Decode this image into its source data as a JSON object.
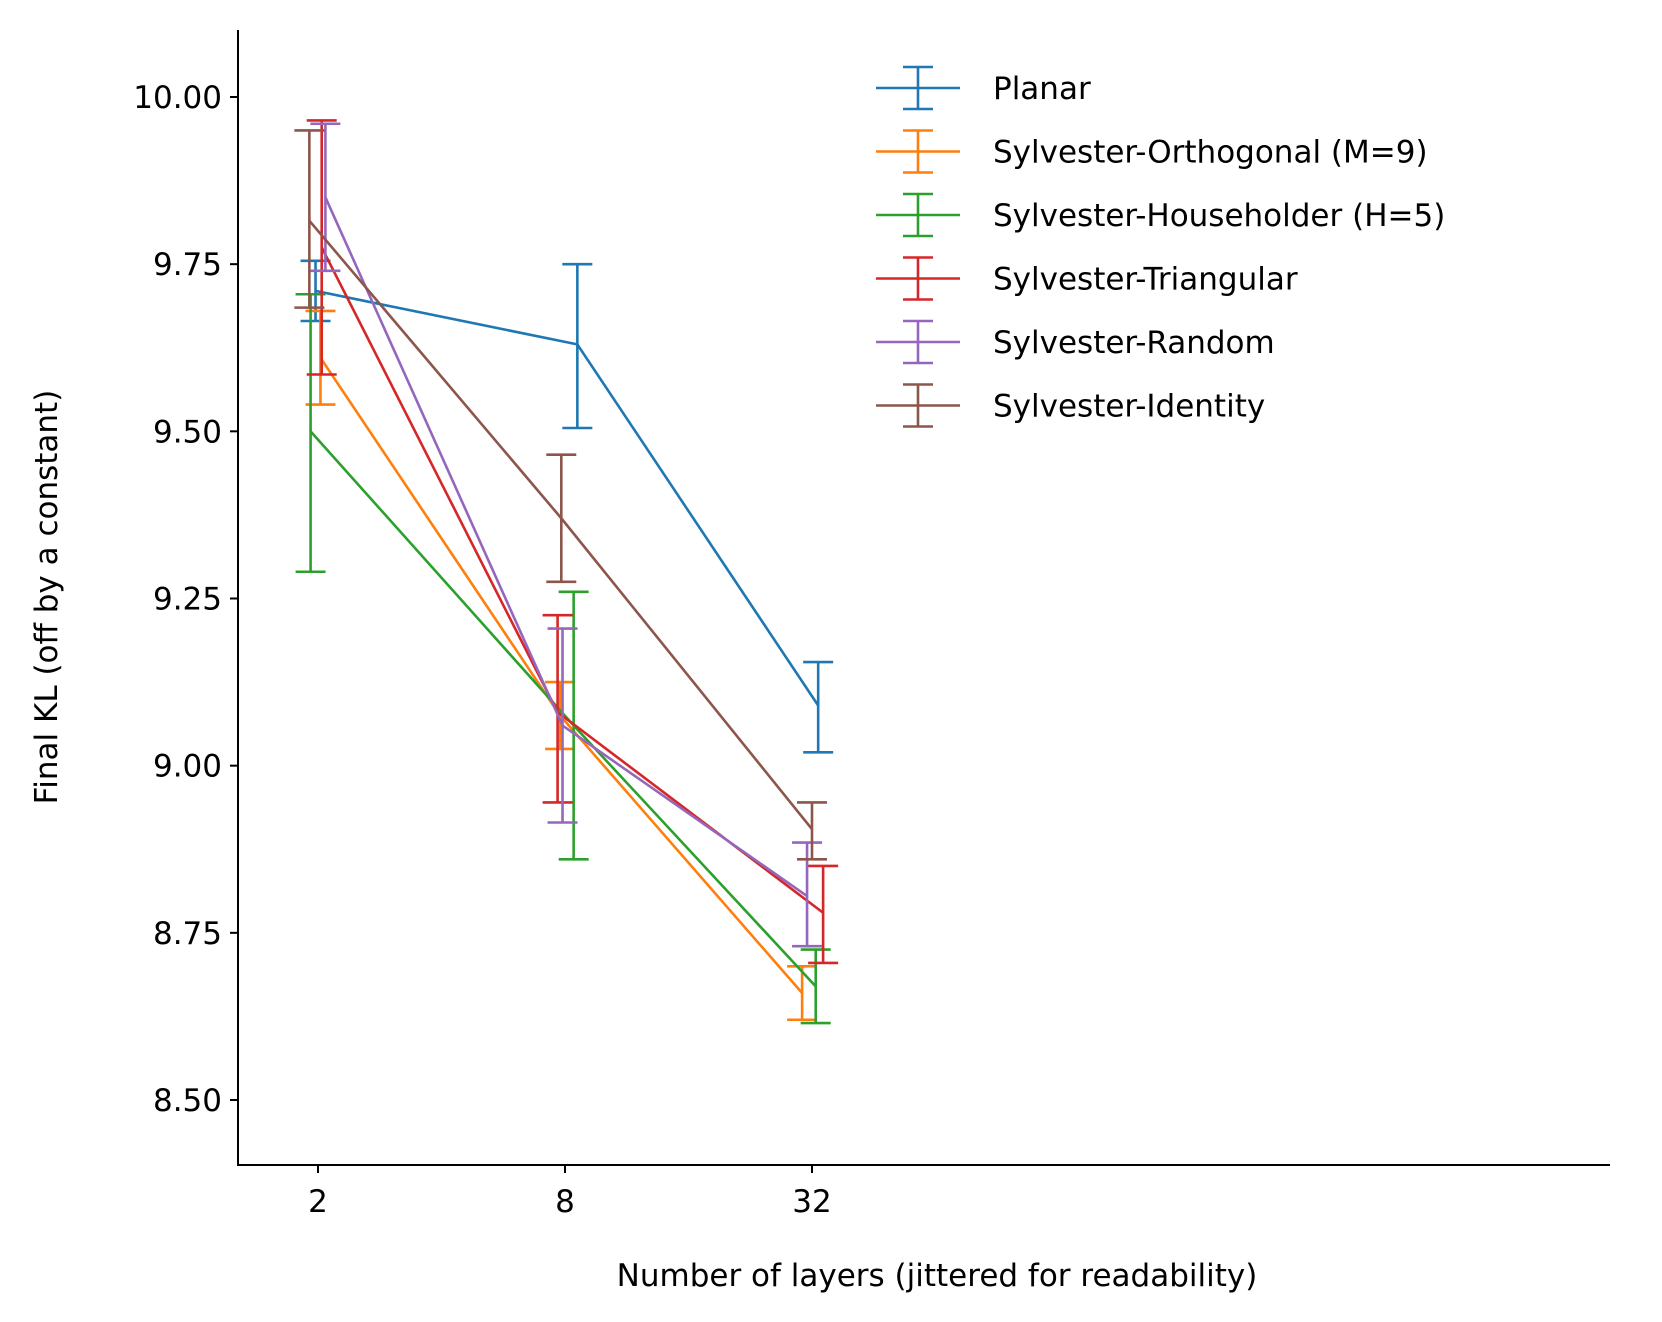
{
  "chart_data": {
    "type": "line",
    "title": "",
    "xlabel": "Number of layers (jittered for readability)",
    "ylabel": "Final KL (off by a constant)",
    "x_categories": [
      "2",
      "8",
      "32"
    ],
    "ylim": [
      8.4,
      10.1
    ],
    "yticks": [
      "8.50",
      "8.75",
      "9.00",
      "9.25",
      "9.50",
      "9.75",
      "10.00"
    ],
    "grid": false,
    "legend_position": "top-right",
    "series": [
      {
        "name": "Planar",
        "color": "#1f77b4",
        "values": [
          9.71,
          9.63,
          9.09
        ],
        "lower": [
          9.665,
          9.505,
          9.02
        ],
        "upper": [
          9.755,
          9.75,
          9.155
        ],
        "jitter": [
          -0.02,
          0.1,
          0.05
        ]
      },
      {
        "name": "Sylvester-Orthogonal (M=9)",
        "color": "#ff7f0e",
        "values": [
          9.61,
          9.075,
          8.66
        ],
        "lower": [
          9.54,
          9.025,
          8.62
        ],
        "upper": [
          9.68,
          9.125,
          8.7
        ],
        "jitter": [
          0.02,
          -0.04,
          -0.08
        ]
      },
      {
        "name": "Sylvester-Householder (H=5)",
        "color": "#2ca02c",
        "values": [
          9.5,
          9.06,
          8.67
        ],
        "lower": [
          9.29,
          8.86,
          8.615
        ],
        "upper": [
          9.705,
          9.26,
          8.725
        ],
        "jitter": [
          -0.06,
          0.07,
          0.03
        ]
      },
      {
        "name": "Sylvester-Triangular",
        "color": "#d62728",
        "values": [
          9.775,
          9.08,
          8.78
        ],
        "lower": [
          9.585,
          8.945,
          8.705
        ],
        "upper": [
          9.965,
          9.225,
          8.85
        ],
        "jitter": [
          0.03,
          -0.06,
          0.09
        ]
      },
      {
        "name": "Sylvester-Random",
        "color": "#9467bd",
        "values": [
          9.85,
          9.06,
          8.805
        ],
        "lower": [
          9.74,
          8.915,
          8.73
        ],
        "upper": [
          9.96,
          9.205,
          8.885
        ],
        "jitter": [
          0.06,
          -0.02,
          -0.04
        ]
      },
      {
        "name": "Sylvester-Identity",
        "color": "#8c564b",
        "values": [
          9.815,
          9.37,
          8.905
        ],
        "lower": [
          9.685,
          9.275,
          8.86
        ],
        "upper": [
          9.95,
          9.465,
          8.945
        ],
        "jitter": [
          -0.07,
          -0.03,
          0.0
        ]
      }
    ]
  }
}
